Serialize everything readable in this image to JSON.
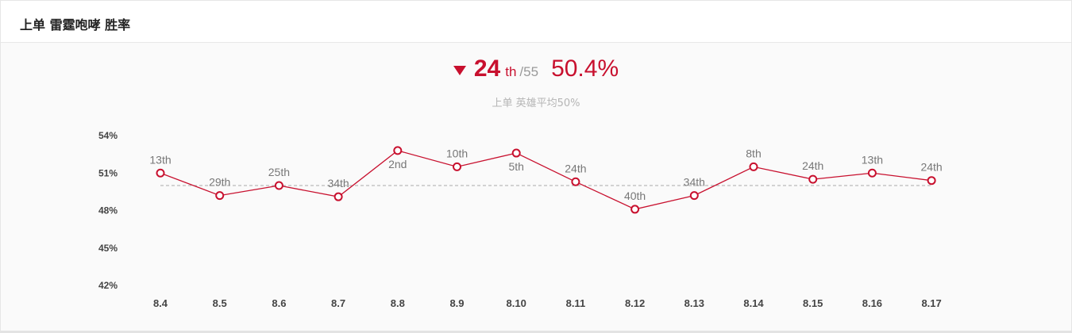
{
  "header": {
    "title": "上单 雷霆咆哮 胜率"
  },
  "summary": {
    "trend_icon": "triangle-down-icon",
    "rank": "24",
    "rank_suffix": "th",
    "rank_total": "/55",
    "winrate": "50.4%",
    "average_label": "上单 英雄平均50%"
  },
  "colors": {
    "accent": "#c8102e",
    "average_line": "#aaaaaa",
    "label": "#777777"
  },
  "chart_data": {
    "type": "line",
    "x": [
      "8.4",
      "8.5",
      "8.6",
      "8.7",
      "8.8",
      "8.9",
      "8.10",
      "8.11",
      "8.12",
      "8.13",
      "8.14",
      "8.15",
      "8.16",
      "8.17"
    ],
    "series": [
      {
        "values": [
          51.0,
          49.2,
          50.0,
          49.1,
          52.8,
          51.5,
          52.6,
          50.3,
          48.1,
          49.2,
          51.5,
          50.5,
          51.0,
          50.4
        ],
        "point_labels": [
          "13th",
          "29th",
          "25th",
          "34th",
          "2nd",
          "10th",
          "5th",
          "24th",
          "40th",
          "34th",
          "8th",
          "24th",
          "13th",
          "24th"
        ],
        "label_positions": [
          "above",
          "above",
          "above",
          "above",
          "below",
          "above",
          "below",
          "above",
          "above",
          "above",
          "above",
          "above",
          "above",
          "above"
        ]
      }
    ],
    "average": 50,
    "ylim": [
      42,
      54
    ],
    "yticks": [
      54,
      51,
      48,
      45,
      42
    ],
    "ytick_labels": [
      "54%",
      "51%",
      "48%",
      "45%",
      "42%"
    ],
    "grid": false
  }
}
